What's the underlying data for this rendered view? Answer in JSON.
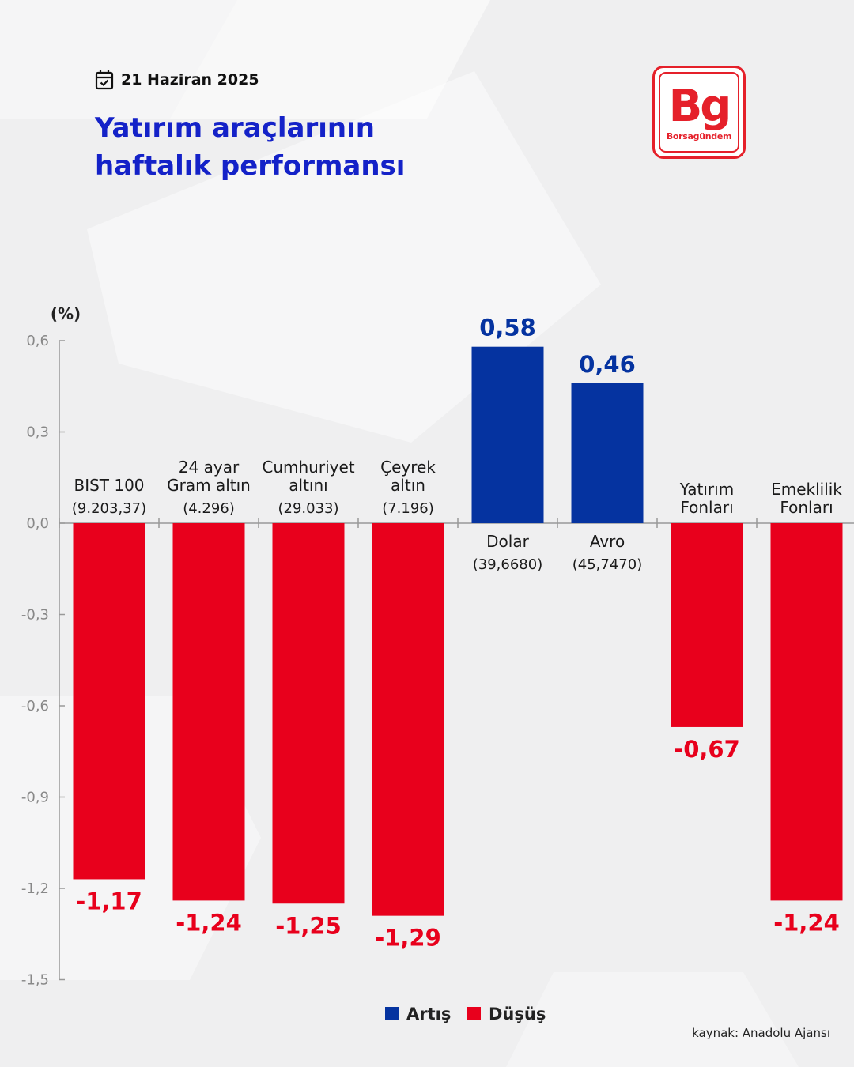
{
  "header": {
    "date": "21 Haziran 2025",
    "title_line1": "Yatırım araçlarının",
    "title_line2": "haftalık performansı"
  },
  "logo": {
    "mark": "Bg",
    "name": "Borsagündem"
  },
  "source": "kaynak: Anadolu Ajansı",
  "icons": {
    "date": "calendar-check-icon"
  },
  "colors": {
    "increase": "#0533a0",
    "decrease": "#e8001c",
    "title": "#1422c8",
    "brand": "#e5202a"
  },
  "chart_data": {
    "type": "bar",
    "ylabel": "(%)",
    "ylim": [
      -1.5,
      0.6
    ],
    "yticks": [
      "0,6",
      "0,3",
      "0,0",
      "-0,3",
      "-0,6",
      "-0,9",
      "-1,2",
      "-1,5"
    ],
    "yticks_values": [
      0.6,
      0.3,
      0.0,
      -0.3,
      -0.6,
      -0.9,
      -1.2,
      -1.5
    ],
    "grid": false,
    "legend_position": "bottom-center",
    "legend": [
      {
        "name": "Artış",
        "color": "#0533a0"
      },
      {
        "name": "Düşüş",
        "color": "#e8001c"
      }
    ],
    "categories": [
      {
        "lines": [
          "BIST 100"
        ],
        "sub": "(9.203,37)",
        "value": -1.17,
        "value_label": "-1,17"
      },
      {
        "lines": [
          "24 ayar",
          "Gram altın"
        ],
        "sub": "(4.296)",
        "value": -1.24,
        "value_label": "-1,24"
      },
      {
        "lines": [
          "Cumhuriyet",
          "altını"
        ],
        "sub": "(29.033)",
        "value": -1.25,
        "value_label": "-1,25"
      },
      {
        "lines": [
          "Çeyrek",
          "altın"
        ],
        "sub": "(7.196)",
        "value": -1.29,
        "value_label": "-1,29"
      },
      {
        "lines": [
          "Dolar"
        ],
        "sub": "(39,6680)",
        "value": 0.58,
        "value_label": "0,58"
      },
      {
        "lines": [
          "Avro"
        ],
        "sub": "(45,7470)",
        "value": 0.46,
        "value_label": "0,46"
      },
      {
        "lines": [
          "Yatırım",
          "Fonları"
        ],
        "sub": "",
        "value": -0.67,
        "value_label": "-0,67"
      },
      {
        "lines": [
          "Emeklilik",
          "Fonları"
        ],
        "sub": "",
        "value": -1.24,
        "value_label": "-1,24"
      }
    ]
  }
}
